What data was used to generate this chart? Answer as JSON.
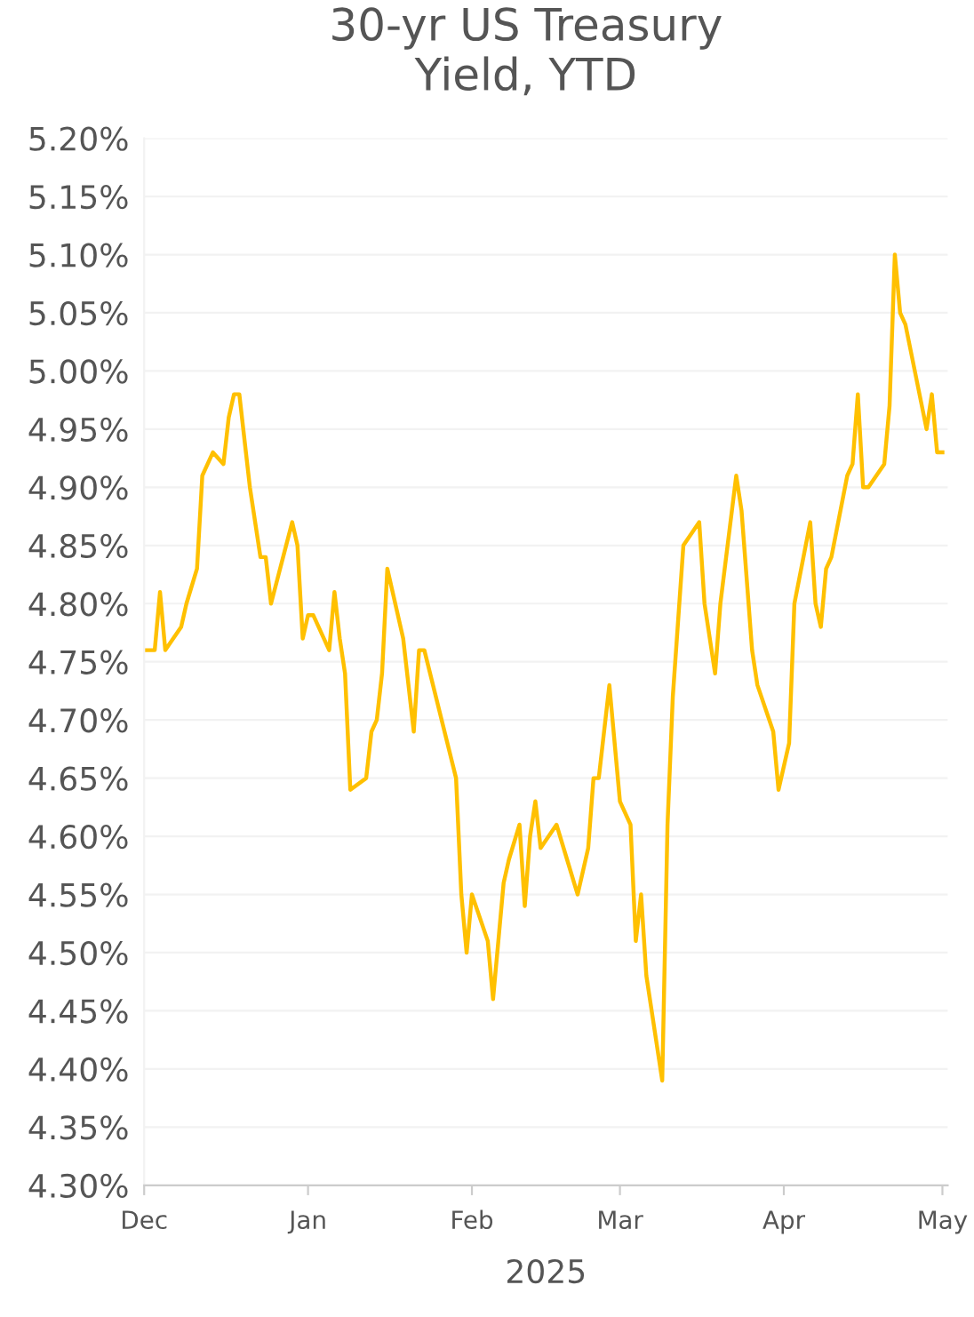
{
  "chart_data": {
    "type": "line",
    "title": "30-yr US Treasury\nYield, YTD",
    "xlabel": "2025",
    "x": [
      "2024-12-01",
      "2024-12-03",
      "2024-12-04",
      "2024-12-05",
      "2024-12-08",
      "2024-12-09",
      "2024-12-11",
      "2024-12-12",
      "2024-12-14",
      "2024-12-16",
      "2024-12-17",
      "2024-12-18",
      "2024-12-19",
      "2024-12-21",
      "2024-12-23",
      "2024-12-24",
      "2024-12-25",
      "2024-12-29",
      "2024-12-30",
      "2024-12-31",
      "2025-01-01",
      "2025-01-02",
      "2025-01-05",
      "2025-01-06",
      "2025-01-07",
      "2025-01-08",
      "2025-01-09",
      "2025-01-12",
      "2025-01-13",
      "2025-01-14",
      "2025-01-15",
      "2025-01-16",
      "2025-01-19",
      "2025-01-21",
      "2025-01-22",
      "2025-01-23",
      "2025-01-29",
      "2025-01-30",
      "2025-01-31",
      "2025-02-01",
      "2025-02-04",
      "2025-02-05",
      "2025-02-07",
      "2025-02-08",
      "2025-02-10",
      "2025-02-11",
      "2025-02-12",
      "2025-02-13",
      "2025-02-14",
      "2025-02-17",
      "2025-02-19",
      "2025-02-21",
      "2025-02-23",
      "2025-02-24",
      "2025-02-25",
      "2025-02-27",
      "2025-03-01",
      "2025-03-03",
      "2025-03-04",
      "2025-03-05",
      "2025-03-06",
      "2025-03-09",
      "2025-03-10",
      "2025-03-11",
      "2025-03-13",
      "2025-03-16",
      "2025-03-17",
      "2025-03-19",
      "2025-03-20",
      "2025-03-23",
      "2025-03-24",
      "2025-03-26",
      "2025-03-27",
      "2025-03-30",
      "2025-03-31",
      "2025-04-02",
      "2025-04-03",
      "2025-04-06",
      "2025-04-07",
      "2025-04-08",
      "2025-04-09",
      "2025-04-10",
      "2025-04-13",
      "2025-04-14",
      "2025-04-15",
      "2025-04-16",
      "2025-04-17",
      "2025-04-20",
      "2025-04-21",
      "2025-04-22",
      "2025-04-23",
      "2025-04-24",
      "2025-04-28",
      "2025-04-29",
      "2025-04-30",
      "2025-05-01"
    ],
    "values": [
      4.76,
      4.76,
      4.81,
      4.76,
      4.78,
      4.8,
      4.83,
      4.91,
      4.93,
      4.92,
      4.96,
      4.98,
      4.98,
      4.9,
      4.84,
      4.84,
      4.8,
      4.87,
      4.85,
      4.77,
      4.79,
      4.79,
      4.76,
      4.81,
      4.77,
      4.74,
      4.64,
      4.65,
      4.69,
      4.7,
      4.74,
      4.83,
      4.77,
      4.69,
      4.76,
      4.76,
      4.65,
      4.55,
      4.5,
      4.55,
      4.51,
      4.46,
      4.56,
      4.58,
      4.61,
      4.54,
      4.6,
      4.63,
      4.59,
      4.61,
      4.58,
      4.55,
      4.59,
      4.65,
      4.65,
      4.73,
      4.63,
      4.61,
      4.51,
      4.55,
      4.48,
      4.39,
      4.61,
      4.72,
      4.85,
      4.87,
      4.8,
      4.74,
      4.8,
      4.91,
      4.88,
      4.76,
      4.73,
      4.69,
      4.64,
      4.68,
      4.8,
      4.87,
      4.8,
      4.78,
      4.83,
      4.84,
      4.91,
      4.92,
      4.98,
      4.9,
      4.9,
      4.92,
      4.97,
      5.1,
      5.05,
      5.04,
      4.95,
      4.98,
      4.93,
      4.93
    ],
    "color": "#ffc000",
    "xlim": [
      "2024-12-01",
      "2025-05-02"
    ],
    "xticks": [
      {
        "value": "2024-12-01",
        "label": "Dec"
      },
      {
        "value": "2025-01-01",
        "label": "Jan"
      },
      {
        "value": "2025-02-01",
        "label": "Feb"
      },
      {
        "value": "2025-03-01",
        "label": "Mar"
      },
      {
        "value": "2025-04-01",
        "label": "Apr"
      },
      {
        "value": "2025-05-01",
        "label": "May"
      }
    ],
    "ylim": [
      4.3,
      5.2
    ],
    "yticks": [
      {
        "value": 4.3,
        "label": "4.30%"
      },
      {
        "value": 4.35,
        "label": "4.35%"
      },
      {
        "value": 4.4,
        "label": "4.40%"
      },
      {
        "value": 4.45,
        "label": "4.45%"
      },
      {
        "value": 4.5,
        "label": "4.50%"
      },
      {
        "value": 4.55,
        "label": "4.55%"
      },
      {
        "value": 4.6,
        "label": "4.60%"
      },
      {
        "value": 4.65,
        "label": "4.65%"
      },
      {
        "value": 4.7,
        "label": "4.70%"
      },
      {
        "value": 4.75,
        "label": "4.75%"
      },
      {
        "value": 4.8,
        "label": "4.80%"
      },
      {
        "value": 4.85,
        "label": "4.85%"
      },
      {
        "value": 4.9,
        "label": "4.90%"
      },
      {
        "value": 4.95,
        "label": "4.95%"
      },
      {
        "value": 5.0,
        "label": "5.00%"
      },
      {
        "value": 5.05,
        "label": "5.05%"
      },
      {
        "value": 5.1,
        "label": "5.10%"
      },
      {
        "value": 5.15,
        "label": "5.15%"
      },
      {
        "value": 5.2,
        "label": "5.20%"
      }
    ],
    "grid": "y",
    "marker": "none",
    "line_style": "solid",
    "legend": false
  }
}
